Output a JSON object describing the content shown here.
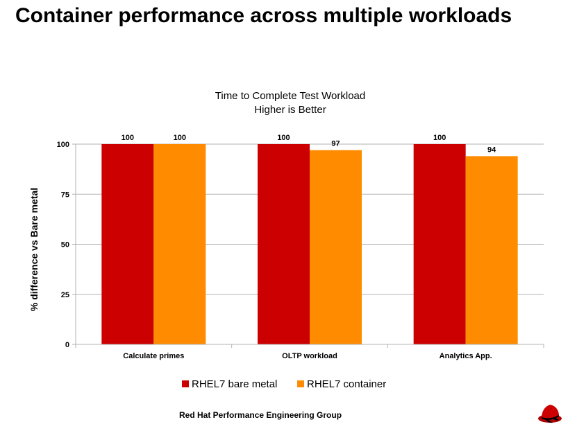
{
  "slide": {
    "title": "Container performance across multiple workloads",
    "footer": "Red Hat Performance Engineering Group",
    "logo_icon": "redhat-shadowman-logo"
  },
  "chart_data": {
    "type": "bar",
    "title": "Time to Complete Test Workload",
    "subtitle": "Higher is Better",
    "xlabel": "",
    "ylabel": "% difference vs Bare metal",
    "categories": [
      "Calculate primes",
      "OLTP workload",
      "Analytics App."
    ],
    "series": [
      {
        "name": "RHEL7 bare metal",
        "color": "#cc0000",
        "values": [
          100,
          100,
          100
        ]
      },
      {
        "name": "RHEL7 container",
        "color": "#ff8c00",
        "values": [
          100,
          97,
          94
        ]
      }
    ],
    "ylim": [
      0,
      100
    ],
    "yticks": [
      0,
      25,
      50,
      75,
      100
    ],
    "grid": true,
    "legend": "bottom",
    "data_labels": true
  }
}
